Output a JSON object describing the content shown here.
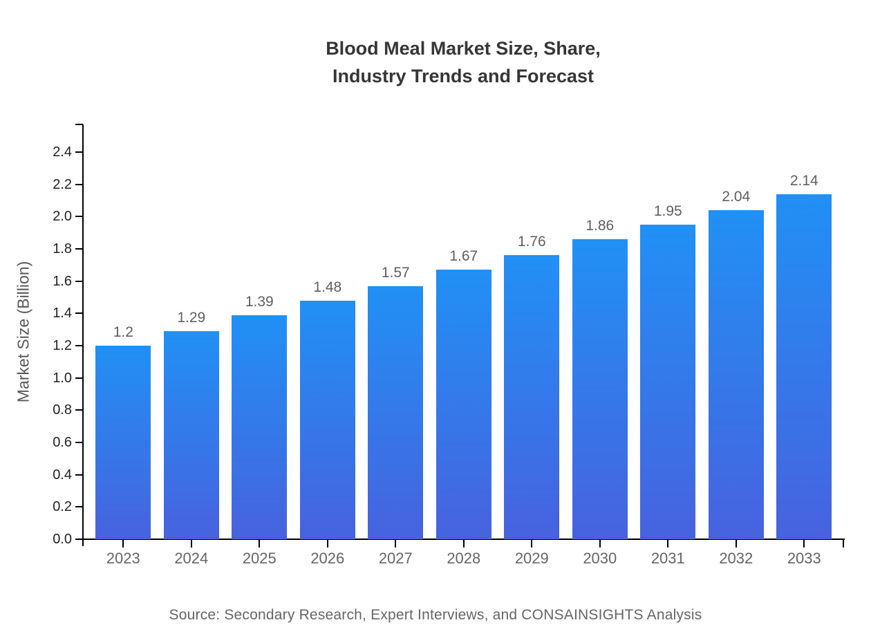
{
  "title": {
    "line1": "Blood Meal Market Size, Share,",
    "line2": "Industry Trends and Forecast"
  },
  "source": "Source: Secondary Research, Expert Interviews, and CONSAINSIGHTS Analysis",
  "chart_data": {
    "type": "bar",
    "title": "Blood Meal Market Size, Share, Industry Trends and Forecast",
    "categories": [
      "2023",
      "2024",
      "2025",
      "2026",
      "2027",
      "2028",
      "2029",
      "2030",
      "2031",
      "2032",
      "2033"
    ],
    "values": [
      1.2,
      1.29,
      1.39,
      1.48,
      1.57,
      1.67,
      1.76,
      1.86,
      1.95,
      2.04,
      2.14
    ],
    "value_labels": [
      "1.2",
      "1.29",
      "1.39",
      "1.48",
      "1.57",
      "1.67",
      "1.76",
      "1.86",
      "1.95",
      "2.04",
      "2.14"
    ],
    "xlabel": "",
    "ylabel": "Market Size (Billion)",
    "ylim": [
      0,
      2.57
    ],
    "yticks": [
      0.0,
      0.2,
      0.4,
      0.6,
      0.8,
      1.0,
      1.2,
      1.4,
      1.6,
      1.8,
      2.0,
      2.2,
      2.4
    ],
    "ytick_labels": [
      "0.0",
      "0.2",
      "0.4",
      "0.6",
      "0.8",
      "1.0",
      "1.2",
      "1.4",
      "1.6",
      "1.8",
      "2.0",
      "2.2",
      "2.4"
    ],
    "grid": false,
    "legend": false,
    "bar_gradient_top": "#2190F5",
    "bar_gradient_bottom": "#4862DE"
  },
  "colors": {
    "background": "#ffffff",
    "axis": "#000000",
    "title_text": "#363636",
    "y_tick_label": "#222222",
    "x_tick_label": "#666666",
    "value_label": "#5f5f5f",
    "axis_title": "#595959",
    "source_text": "#666666",
    "bar_top": "#2190F5",
    "bar_bottom": "#4862DE"
  }
}
